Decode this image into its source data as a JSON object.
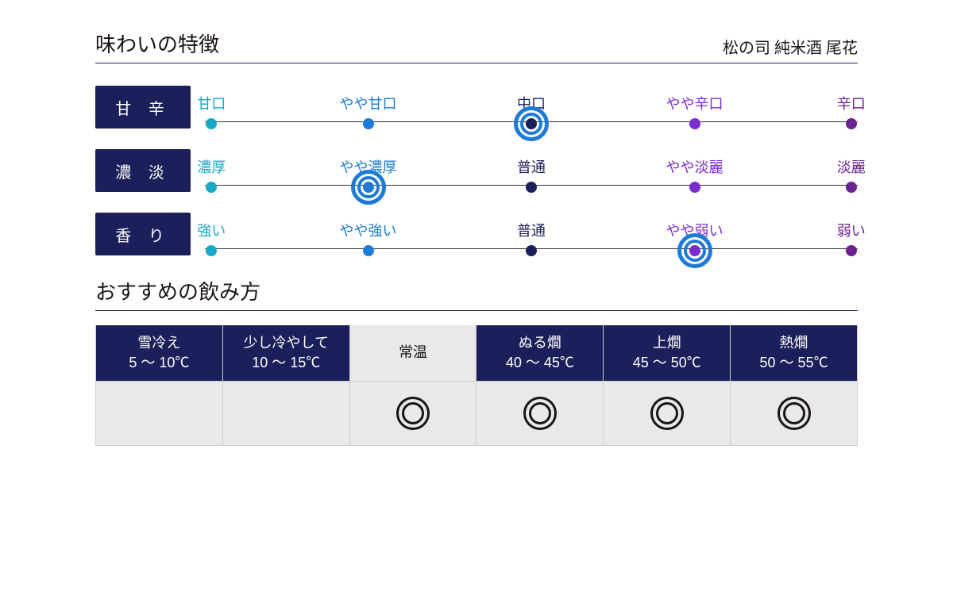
{
  "colors": {
    "navy": "#1b1f5a",
    "ring": "#1d7bd6",
    "stop_colors": [
      "#17a9c7",
      "#1d7bd6",
      "#1b1f5a",
      "#7a2bd1",
      "#6a2390"
    ]
  },
  "header": {
    "title": "味わいの特徴",
    "subtitle": "松の司 純米酒 尾花"
  },
  "scales": [
    {
      "tag": "甘 辛",
      "stops": [
        "甘口",
        "やや甘口",
        "中口",
        "やや辛口",
        "辛口"
      ],
      "selected": 2
    },
    {
      "tag": "濃 淡",
      "stops": [
        "濃厚",
        "やや濃厚",
        "普通",
        "やや淡麗",
        "淡麗"
      ],
      "selected": 1
    },
    {
      "tag": "香 り",
      "stops": [
        "強い",
        "やや強い",
        "普通",
        "やや弱い",
        "弱い"
      ],
      "selected": 3
    }
  ],
  "serving": {
    "title": "おすすめの飲み方",
    "cols": [
      {
        "name": "雪冷え",
        "range": "5 〜 10℃",
        "head_light": false,
        "mark": false
      },
      {
        "name": "少し冷やして",
        "range": "10 〜 15℃",
        "head_light": false,
        "mark": false
      },
      {
        "name": "常温",
        "range": "",
        "head_light": true,
        "mark": true
      },
      {
        "name": "ぬる燗",
        "range": "40 〜 45℃",
        "head_light": false,
        "mark": true
      },
      {
        "name": "上燗",
        "range": "45 〜 50℃",
        "head_light": false,
        "mark": true
      },
      {
        "name": "熱燗",
        "range": "50 〜 55℃",
        "head_light": false,
        "mark": true
      }
    ]
  },
  "layout": {
    "stop_positions_pct": [
      1,
      25,
      50,
      75,
      99
    ]
  }
}
